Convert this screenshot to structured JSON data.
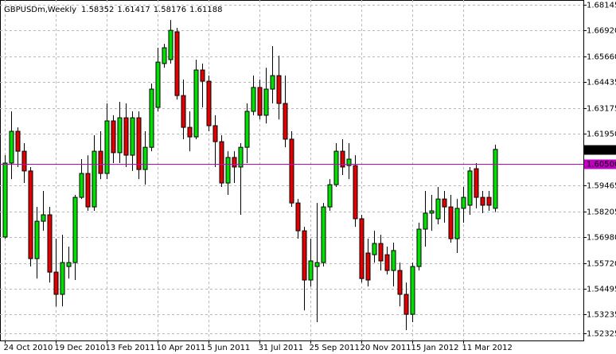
{
  "chart_data": {
    "type": "candlestick",
    "title": "GBPUSDm,Weekly",
    "categories": [
      "24 Oct 2010",
      null,
      null,
      null,
      null,
      null,
      null,
      null,
      "19 Dec 2010",
      null,
      null,
      null,
      null,
      null,
      null,
      null,
      "13 Feb 2011",
      null,
      null,
      null,
      null,
      null,
      null,
      null,
      "10 Apr 2011",
      null,
      null,
      null,
      null,
      null,
      null,
      null,
      "5 Jun 2011",
      null,
      null,
      null,
      null,
      null,
      null,
      null,
      "31 Jul 2011",
      null,
      null,
      null,
      null,
      null,
      null,
      null,
      "25 Sep 2011",
      null,
      null,
      null,
      null,
      null,
      null,
      null,
      "20 Nov 2011",
      null,
      null,
      null,
      null,
      null,
      null,
      null,
      "15 Jan 2012",
      null,
      null,
      null,
      null,
      null,
      null,
      null,
      "11 Mar 2012",
      null,
      null,
      null,
      null,
      null
    ],
    "open": [
      1.5697,
      1.6053,
      1.6206,
      1.611,
      1.6015,
      1.5593,
      1.5773,
      1.5804,
      1.5528,
      1.5421,
      1.5555,
      1.5574,
      1.5888,
      1.6003,
      1.5842,
      1.611,
      1.6003,
      1.6256,
      1.6103,
      1.6271,
      1.6091,
      1.6271,
      1.6022,
      1.6129,
      1.6321,
      1.6532,
      1.6551,
      1.6685,
      1.6378,
      1.6225,
      1.6179,
      1.6501,
      1.6447,
      1.6233,
      1.6156,
      1.5957,
      1.608,
      1.6034,
      1.6129,
      1.6302,
      1.6417,
      1.6283,
      1.6409,
      1.6474,
      1.634,
      1.6168,
      1.5861,
      1.5727,
      1.549,
      1.5555,
      1.5574,
      1.5842,
      1.5949,
      1.611,
      1.6041,
      1.6041,
      1.5785,
      1.562,
      1.5612,
      1.5666,
      1.5612,
      1.5536,
      1.5536,
      1.5421,
      1.5325,
      1.5555,
      1.5735,
      1.5812,
      1.5785,
      1.588,
      1.5842,
      1.5689,
      1.5835,
      1.585,
      1.6026,
      1.5888,
      1.5888,
      1.58352
    ],
    "high": [
      1.6091,
      1.6302,
      1.6225,
      1.6149,
      1.6034,
      1.5842,
      1.5919,
      1.5842,
      1.5689,
      1.5708,
      1.5651,
      1.59,
      1.6072,
      1.6091,
      1.6187,
      1.6206,
      1.634,
      1.6283,
      1.6348,
      1.634,
      1.6302,
      1.6302,
      1.6206,
      1.6436,
      1.6608,
      1.6627,
      1.6742,
      1.6704,
      1.6455,
      1.6302,
      1.6551,
      1.6532,
      1.6474,
      1.6283,
      1.6187,
      1.611,
      1.611,
      1.6149,
      1.634,
      1.6474,
      1.6455,
      1.6512,
      1.6616,
      1.657,
      1.6474,
      1.6206,
      1.588,
      1.5746,
      1.5689,
      1.5861,
      1.5861,
      1.5976,
      1.6149,
      1.6168,
      1.6149,
      1.6091,
      1.5804,
      1.5689,
      1.5727,
      1.5708,
      1.5651,
      1.567,
      1.5574,
      1.5478,
      1.5574,
      1.5766,
      1.5919,
      1.59,
      1.5938,
      1.5919,
      1.59,
      1.588,
      1.5938,
      1.6034,
      1.6053,
      1.5919,
      1.5919,
      1.61417
    ],
    "low": [
      1.5689,
      1.5976,
      1.6034,
      1.5957,
      1.5555,
      1.5497,
      1.5727,
      1.5478,
      1.5363,
      1.5363,
      1.5497,
      1.549,
      1.588,
      1.5823,
      1.5823,
      1.5976,
      1.5976,
      1.6053,
      1.6053,
      1.6034,
      1.6015,
      1.5976,
      1.5949,
      1.611,
      1.6302,
      1.6512,
      1.6532,
      1.6359,
      1.6168,
      1.611,
      1.6168,
      1.6321,
      1.6206,
      1.6034,
      1.5938,
      1.59,
      1.5957,
      1.5804,
      1.6053,
      1.6283,
      1.6263,
      1.6244,
      1.634,
      1.6263,
      1.6129,
      1.5842,
      1.5689,
      1.5344,
      1.5459,
      1.5287,
      1.5555,
      1.5823,
      1.5938,
      1.5995,
      1.5976,
      1.5746,
      1.5478,
      1.5459,
      1.5574,
      1.5536,
      1.5517,
      1.5459,
      1.5363,
      1.5249,
      1.5287,
      1.5536,
      1.5651,
      1.5727,
      1.5758,
      1.5766,
      1.567,
      1.562,
      1.5766,
      1.5804,
      1.5835,
      1.5812,
      1.5823,
      1.58176
    ],
    "close": [
      1.6053,
      1.6206,
      1.611,
      1.6015,
      1.5593,
      1.5773,
      1.5804,
      1.5528,
      1.5421,
      1.5574,
      1.5574,
      1.5888,
      1.6003,
      1.5842,
      1.611,
      1.6003,
      1.6256,
      1.6103,
      1.6271,
      1.6091,
      1.6271,
      1.6022,
      1.6129,
      1.6409,
      1.6539,
      1.6608,
      1.6692,
      1.6378,
      1.6225,
      1.6179,
      1.6501,
      1.6447,
      1.6233,
      1.6156,
      1.5957,
      1.608,
      1.6034,
      1.6129,
      1.6302,
      1.6417,
      1.6283,
      1.6409,
      1.6474,
      1.634,
      1.6168,
      1.5861,
      1.5727,
      1.549,
      1.5582,
      1.5574,
      1.5842,
      1.5949,
      1.611,
      1.6034,
      1.6072,
      1.5785,
      1.5497,
      1.549,
      1.5666,
      1.5582,
      1.5536,
      1.5632,
      1.5421,
      1.5325,
      1.5555,
      1.5735,
      1.5812,
      1.5823,
      1.588,
      1.5842,
      1.5689,
      1.5835,
      1.5888,
      1.6015,
      1.5888,
      1.585,
      1.585,
      1.61188
    ],
    "up_color": "#00e000",
    "down_color": "#e00000",
    "ylim": [
      1.5199,
      1.6838
    ],
    "yticks": [
      1.68145,
      {
        "value": 1.6692,
        "label": "1.66920"
      },
      {
        "value": 1.6566,
        "label": "1.65660"
      },
      1.64435,
      1.63175,
      {
        "value": 1.6195,
        "label": "1.61950"
      },
      1.59465,
      1.58205,
      {
        "value": 1.5698,
        "label": "1.56980"
      },
      {
        "value": 1.5572,
        "label": "1.55720"
      },
      1.54495,
      1.53235,
      1.52325
    ],
    "level": {
      "value": 1.605,
      "label": "1.60500",
      "color": "#c000c0"
    },
    "grid": true
  }
}
